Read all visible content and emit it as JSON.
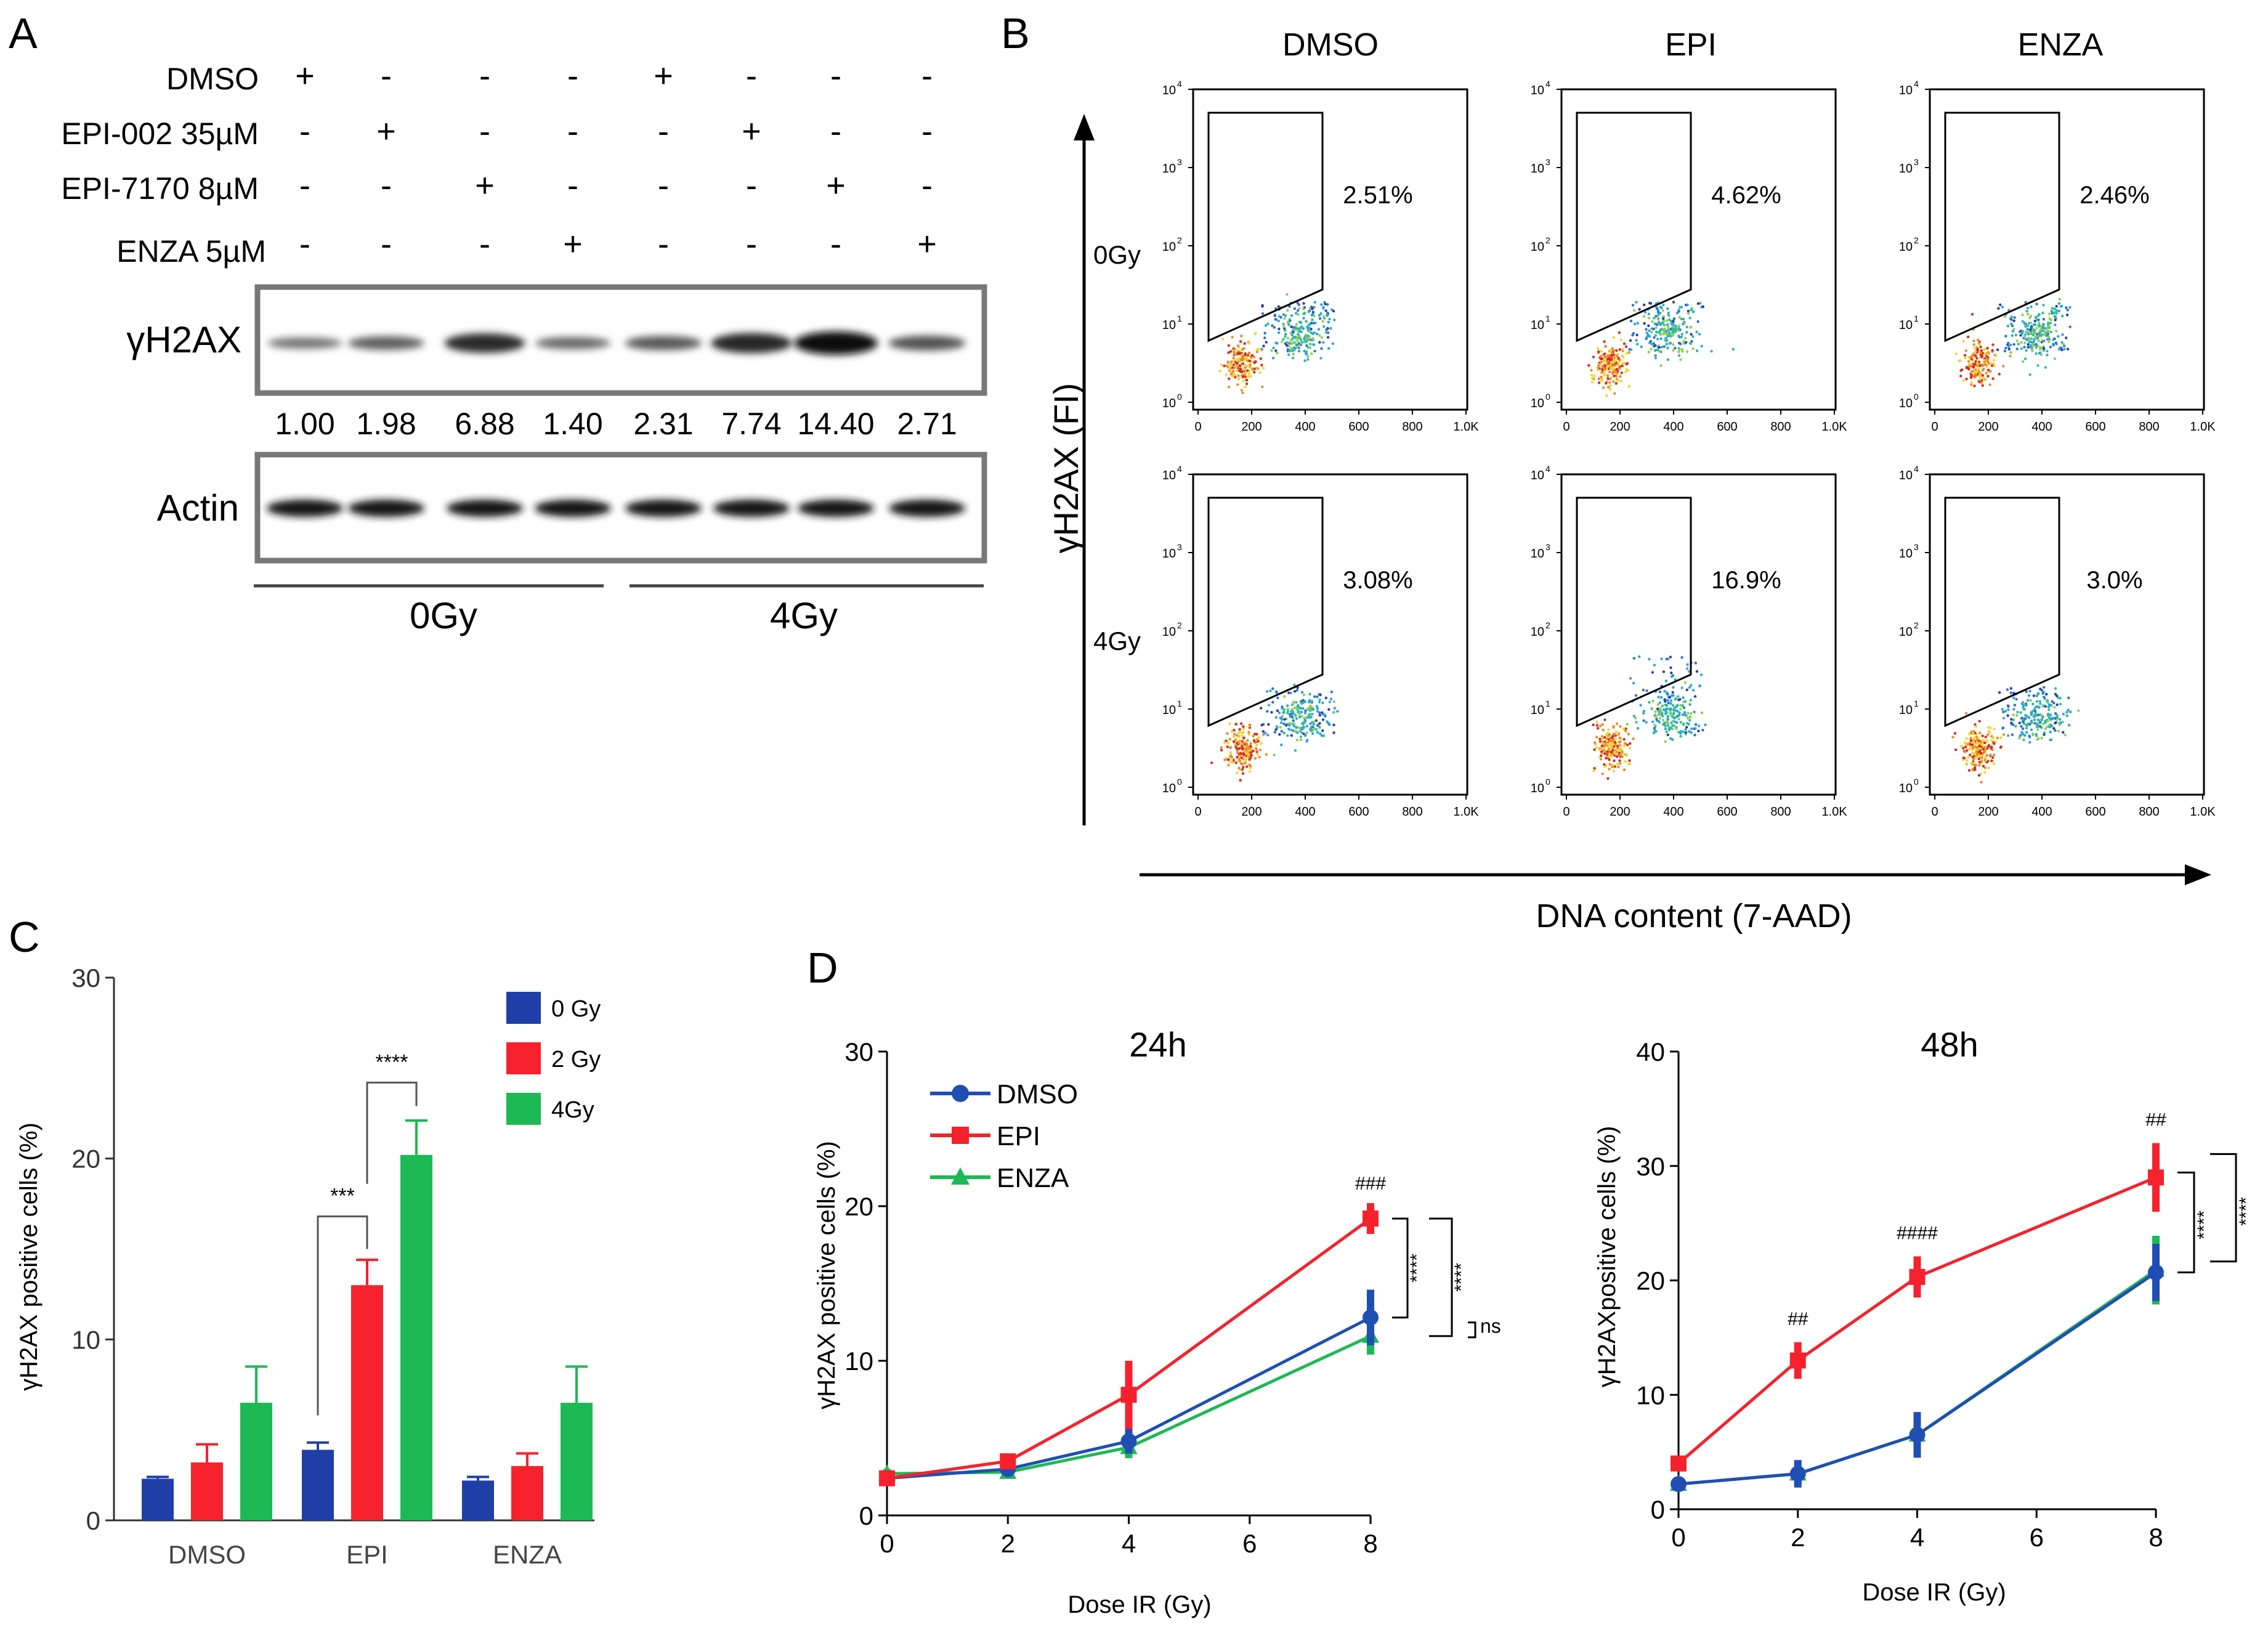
{
  "figure": {
    "panel_labels": [
      "A",
      "B",
      "C",
      "D"
    ]
  },
  "panel_a": {
    "treatment_rows": [
      {
        "label": "DMSO",
        "signs": [
          "+",
          "-",
          "-",
          "-",
          "+",
          "-",
          "-",
          "-"
        ]
      },
      {
        "label": "EPI-002 35µM",
        "signs": [
          "-",
          "+",
          "-",
          "-",
          "-",
          "+",
          "-",
          "-"
        ]
      },
      {
        "label": "EPI-7170 8µM",
        "signs": [
          "-",
          "-",
          "+",
          "-",
          "-",
          "-",
          "+",
          "-"
        ]
      },
      {
        "label": "ENZA 5µM",
        "signs": [
          "-",
          "-",
          "-",
          "+",
          "-",
          "-",
          "-",
          "+"
        ]
      }
    ],
    "blot_top_label": "γH2AX",
    "blot_bottom_label": "Actin",
    "quantification": [
      "1.00",
      "1.98",
      "6.88",
      "1.40",
      "2.31",
      "7.74",
      "14.40",
      "2.71"
    ],
    "dose_groups": [
      "0Gy",
      "4Gy"
    ],
    "h2ax_intensity": [
      1.0,
      1.98,
      6.88,
      1.4,
      2.31,
      7.74,
      14.4,
      2.71
    ],
    "actin_intensity": [
      1,
      1,
      1,
      1,
      1,
      1,
      1,
      1
    ]
  },
  "panel_b": {
    "column_titles": [
      "DMSO",
      "EPI",
      "ENZA"
    ],
    "row_labels": [
      "0Gy",
      "4Gy"
    ],
    "percentages": [
      [
        "2.51%",
        "4.62%",
        "2.46%"
      ],
      [
        "3.08%",
        "16.9%",
        "3.0%"
      ]
    ],
    "y_axis_label": "γH2AX (FI)",
    "x_axis_label": "DNA content (7-AAD)",
    "x_ticks": [
      "0",
      "200",
      "400",
      "600",
      "800",
      "1.0K"
    ],
    "y_tick_exponents": [
      "0",
      "1",
      "2",
      "3",
      "4"
    ],
    "y_tick_base": "10"
  },
  "chart_data": [
    {
      "type": "bar",
      "title": "",
      "categories": [
        "DMSO",
        "EPI",
        "ENZA"
      ],
      "series": [
        {
          "name": "0 Gy",
          "color": "#1f3ea8",
          "values": [
            2.3,
            3.9,
            2.2
          ],
          "errors": [
            0.1,
            0.4,
            0.2
          ]
        },
        {
          "name": "2 Gy",
          "color": "#f5222d",
          "values": [
            3.2,
            13.0,
            3.0
          ],
          "errors": [
            1.0,
            1.4,
            0.7
          ]
        },
        {
          "name": "4Gy",
          "color": "#1db954",
          "values": [
            6.5,
            20.2,
            6.5
          ],
          "errors": [
            2.0,
            1.9,
            2.0
          ]
        }
      ],
      "xlabel": "",
      "ylabel": "γH2AX positive cells (%)",
      "ylim": [
        0,
        30
      ],
      "yticks": [
        "0",
        "10",
        "20",
        "30"
      ],
      "significance": [
        "***",
        "****"
      ]
    },
    {
      "type": "line",
      "title": "24h",
      "x": [
        0,
        2,
        4,
        8
      ],
      "xticks": [
        "0",
        "2",
        "4",
        "6",
        "8"
      ],
      "series": [
        {
          "name": "DMSO",
          "color": "#1f4fb5",
          "marker": "circle",
          "values": [
            2.4,
            3.0,
            4.8,
            12.8
          ],
          "errors": [
            0.3,
            0.4,
            0.8,
            1.8
          ]
        },
        {
          "name": "EPI",
          "color": "#f5222d",
          "marker": "square",
          "values": [
            2.4,
            3.5,
            7.8,
            19.2
          ],
          "errors": [
            0.3,
            0.5,
            2.2,
            1.0
          ]
        },
        {
          "name": "ENZA",
          "color": "#1db954",
          "marker": "triangle",
          "values": [
            2.7,
            2.8,
            4.4,
            11.6
          ],
          "errors": [
            0.3,
            0.4,
            0.7,
            1.2
          ]
        }
      ],
      "xlabel": "Dose IR (Gy)",
      "ylabel": "γH2AX positive cells (%)",
      "ylim": [
        0,
        30
      ],
      "yticks": [
        "0",
        "10",
        "20",
        "30"
      ],
      "annotations": [
        "###",
        "****",
        "****",
        "ns"
      ]
    },
    {
      "type": "line",
      "title": "48h",
      "x": [
        0,
        2,
        4,
        8
      ],
      "xticks": [
        "0",
        "2",
        "4",
        "6",
        "8"
      ],
      "series": [
        {
          "name": "DMSO",
          "color": "#1f4fb5",
          "marker": "circle",
          "values": [
            2.2,
            3.1,
            6.5,
            20.7
          ],
          "errors": [
            0.4,
            1.2,
            2.0,
            2.5
          ]
        },
        {
          "name": "EPI",
          "color": "#f5222d",
          "marker": "square",
          "values": [
            4.0,
            13.0,
            20.3,
            29.0
          ],
          "errors": [
            0.6,
            1.6,
            1.8,
            3.0
          ]
        },
        {
          "name": "ENZA",
          "color": "#1db954",
          "marker": "triangle",
          "values": [
            2.2,
            3.1,
            6.5,
            20.9
          ],
          "errors": [
            0.4,
            1.0,
            1.8,
            3.0
          ]
        }
      ],
      "xlabel": "Dose IR (Gy)",
      "ylabel": "γH2AXpositive cells (%)",
      "ylim": [
        0,
        40
      ],
      "yticks": [
        "0",
        "10",
        "20",
        "30",
        "40"
      ],
      "annotations": [
        "##",
        "####",
        "##",
        "****",
        "****"
      ]
    }
  ]
}
